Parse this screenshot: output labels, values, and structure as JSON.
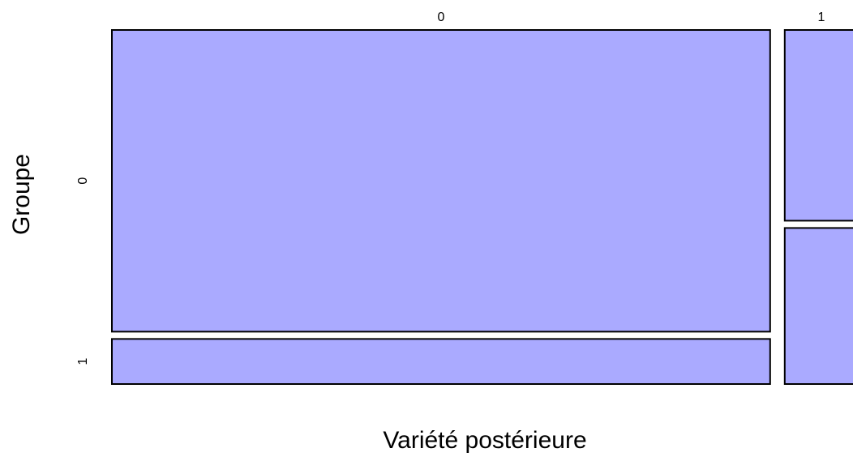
{
  "chart_data": {
    "type": "mosaic",
    "xlabel": "Variété postérieure",
    "ylabel": "Groupe",
    "categories": [
      "0",
      "1"
    ],
    "series": [
      {
        "name": "0",
        "color": "#aaaaff",
        "values": [
          78.3,
          5.5
        ]
      },
      {
        "name": "1",
        "color": "#aaaaff",
        "values": [
          11.7,
          4.5
        ]
      }
    ]
  }
}
